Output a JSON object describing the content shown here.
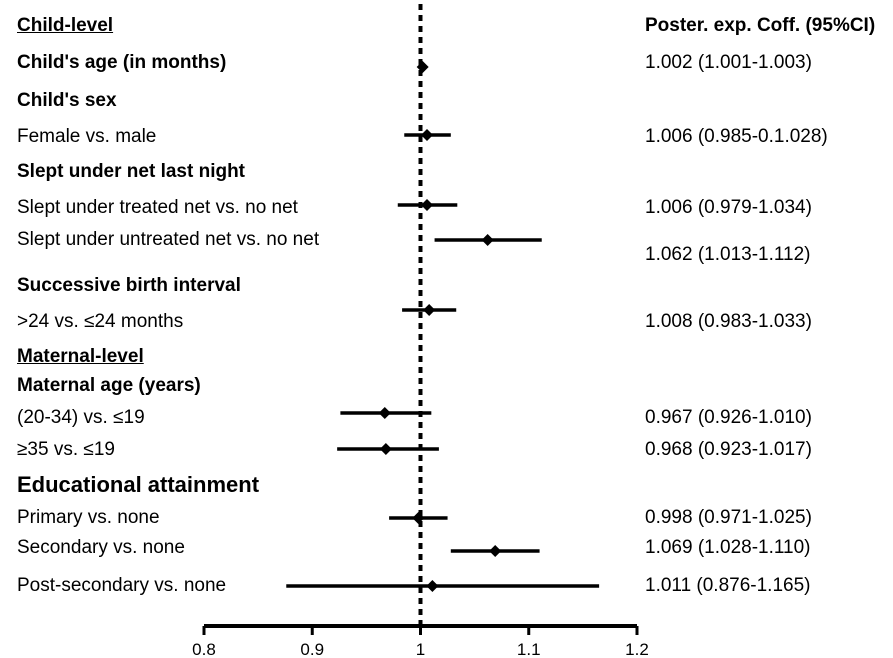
{
  "chart_data": {
    "type": "forest",
    "column_title": "Poster. exp. Coff. (95%CI)",
    "reference_line": 1,
    "xlim": [
      0.8,
      1.2
    ],
    "xticks": [
      "0.8",
      "0.9",
      "1",
      "1.1",
      "1.2"
    ],
    "rows": [
      {
        "label": "Child-level",
        "style": "section"
      },
      {
        "label": "Child's age (in months)",
        "style": "head",
        "estimate": 1.002,
        "lower": 1.001,
        "upper": 1.003,
        "text": "1.002 (1.001-1.003)"
      },
      {
        "label": "Child's sex",
        "style": "head"
      },
      {
        "label": "Female vs. male",
        "style": "item",
        "estimate": 1.006,
        "lower": 0.985,
        "upper": 1.028,
        "text": "1.006 (0.985-0.1.028)"
      },
      {
        "label": "Slept under net last night",
        "style": "head"
      },
      {
        "label": "Slept under treated net vs. no net",
        "style": "item",
        "estimate": 1.006,
        "lower": 0.979,
        "upper": 1.034,
        "text": "1.006 (0.979-1.034)"
      },
      {
        "label": "Slept under untreated net vs. no net",
        "style": "item",
        "estimate": 1.062,
        "lower": 1.013,
        "upper": 1.112,
        "text": "1.062 (1.013-1.112)"
      },
      {
        "label": "Successive birth interval",
        "style": "head"
      },
      {
        "label": ">24 vs. ≤24 months",
        "style": "item",
        "estimate": 1.008,
        "lower": 0.983,
        "upper": 1.033,
        "text": "1.008 (0.983-1.033)"
      },
      {
        "label": "Maternal-level",
        "style": "section"
      },
      {
        "label": "Maternal age (years)",
        "style": "head"
      },
      {
        "label": "(20-34) vs. ≤19",
        "style": "item",
        "estimate": 0.967,
        "lower": 0.926,
        "upper": 1.01,
        "text": "0.967 (0.926-1.010)"
      },
      {
        "label": "≥35 vs. ≤19",
        "style": "item",
        "estimate": 0.968,
        "lower": 0.923,
        "upper": 1.017,
        "text": "0.968 (0.923-1.017)"
      },
      {
        "label": "Educational attainment",
        "style": "big"
      },
      {
        "label": "Primary vs. none",
        "style": "item",
        "estimate": 0.998,
        "lower": 0.971,
        "upper": 1.025,
        "text": "0.998 (0.971-1.025)"
      },
      {
        "label": "Secondary vs. none",
        "style": "item",
        "estimate": 1.069,
        "lower": 1.028,
        "upper": 1.11,
        "text": "1.069 (1.028-1.110)"
      },
      {
        "label": "Post-secondary vs. none",
        "style": "item",
        "estimate": 1.011,
        "lower": 0.876,
        "upper": 1.165,
        "text": "1.011 (0.876-1.165)"
      }
    ]
  }
}
